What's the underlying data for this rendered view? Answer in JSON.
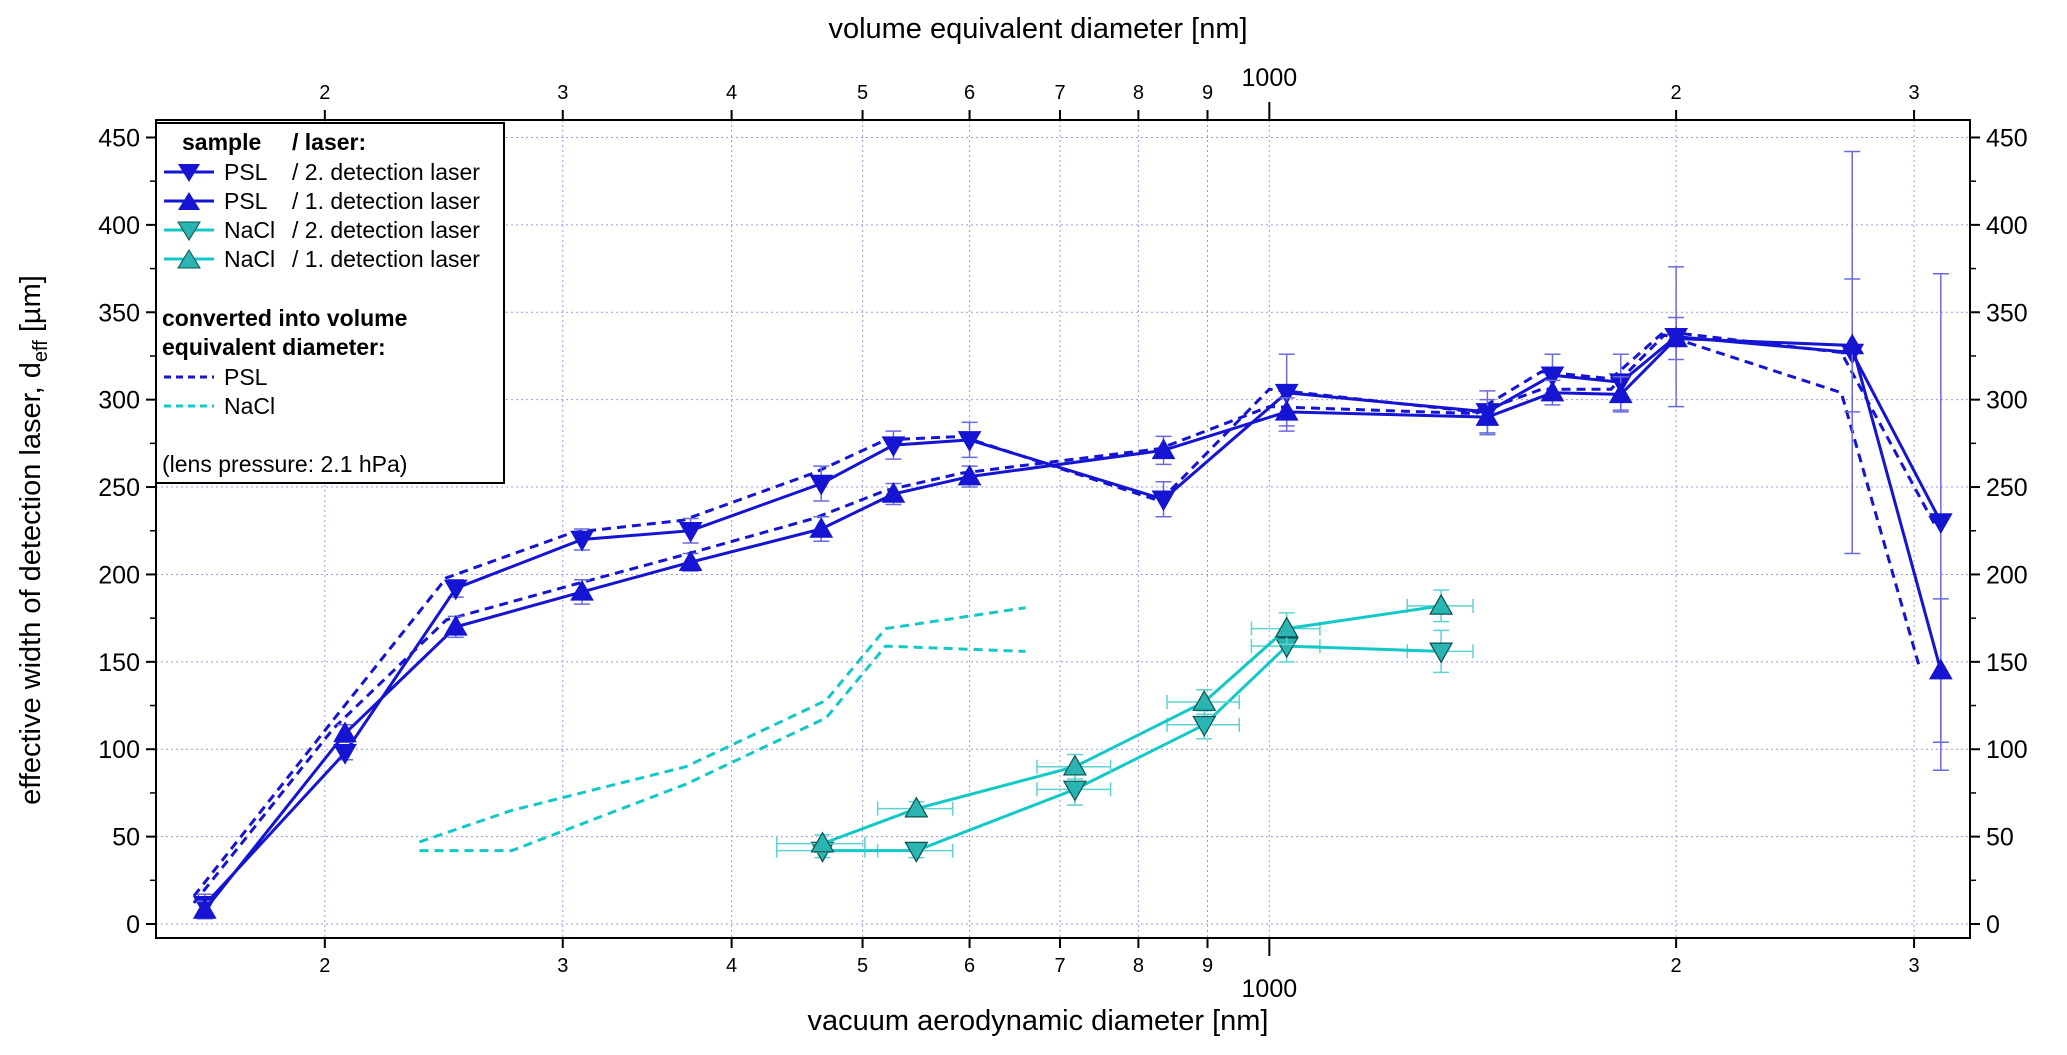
{
  "chart_data": {
    "type": "line",
    "title": "",
    "xlabel": "vacuum aerodynamic diameter [nm]",
    "x2label": "volume equivalent diameter [nm]",
    "ylabel_main": "effective width of detection laser, d",
    "ylabel_sub": "eff",
    "ylabel_unit": " [µm]",
    "xscale": "log",
    "xlim": [
      150,
      3300
    ],
    "ylim": [
      -8,
      460
    ],
    "x_major_tick_label": "1000",
    "x_minor_tick_labels": [
      {
        "value": 200,
        "label": "2"
      },
      {
        "value": 300,
        "label": "3"
      },
      {
        "value": 400,
        "label": "4"
      },
      {
        "value": 500,
        "label": "5"
      },
      {
        "value": 600,
        "label": "6"
      },
      {
        "value": 700,
        "label": "7"
      },
      {
        "value": 800,
        "label": "8"
      },
      {
        "value": 900,
        "label": "9"
      },
      {
        "value": 2000,
        "label": "2"
      },
      {
        "value": 3000,
        "label": "3"
      }
    ],
    "y_ticks": [
      0,
      50,
      100,
      150,
      200,
      250,
      300,
      350,
      400,
      450
    ],
    "grid": true,
    "legend": {
      "placement": "top-left",
      "header_sample": "sample",
      "header_laser": "/ laser:",
      "entries": [
        {
          "sample": "PSL",
          "laser": "/ 2. detection laser"
        },
        {
          "sample": "PSL",
          "laser": "/ 1. detection laser"
        },
        {
          "sample": "NaCl",
          "laser": "/ 2. detection laser"
        },
        {
          "sample": "NaCl",
          "laser": "/ 1. detection laser"
        }
      ],
      "converted_title_1": "converted into volume",
      "converted_title_2": "equivalent diameter:",
      "converted_entries": [
        "PSL",
        "NaCl"
      ],
      "note": "(lens pressure: 2.1 hPa)"
    },
    "colors": {
      "psl": "#1414d2",
      "nacl": "#14c8c8",
      "nacl_fill": "#2ab5b2",
      "errorbar_psl": "#6a6ae0",
      "errorbar_nacl": "#5fd2d2"
    },
    "series": [
      {
        "name": "PSL / 2. detection laser",
        "group": "psl",
        "marker": "down",
        "points": [
          {
            "x": 163,
            "y": 11,
            "err": 6
          },
          {
            "x": 207,
            "y": 98,
            "err": 4
          },
          {
            "x": 250,
            "y": 192,
            "err": 5
          },
          {
            "x": 310,
            "y": 220,
            "err": 6
          },
          {
            "x": 373,
            "y": 225,
            "err": 7
          },
          {
            "x": 466,
            "y": 252,
            "err": 10
          },
          {
            "x": 527,
            "y": 274,
            "err": 8
          },
          {
            "x": 600,
            "y": 277,
            "err": 10
          },
          {
            "x": 835,
            "y": 243,
            "err": 10
          },
          {
            "x": 1030,
            "y": 304,
            "err": 22
          },
          {
            "x": 1450,
            "y": 293,
            "err": 12
          },
          {
            "x": 1620,
            "y": 314,
            "err": 12
          },
          {
            "x": 1820,
            "y": 310,
            "err": 16
          },
          {
            "x": 2000,
            "y": 336,
            "err": 40
          },
          {
            "x": 2700,
            "y": 327,
            "err": 115
          },
          {
            "x": 3140,
            "y": 230,
            "err": 142
          }
        ]
      },
      {
        "name": "PSL / 1. detection laser",
        "group": "psl",
        "marker": "up",
        "points": [
          {
            "x": 163,
            "y": 8,
            "err": 5
          },
          {
            "x": 207,
            "y": 109,
            "err": 5
          },
          {
            "x": 250,
            "y": 170,
            "err": 6
          },
          {
            "x": 310,
            "y": 190,
            "err": 7
          },
          {
            "x": 373,
            "y": 207,
            "err": 5
          },
          {
            "x": 466,
            "y": 226,
            "err": 7
          },
          {
            "x": 527,
            "y": 246,
            "err": 6
          },
          {
            "x": 600,
            "y": 256,
            "err": 6
          },
          {
            "x": 835,
            "y": 271,
            "err": 8
          },
          {
            "x": 1030,
            "y": 293,
            "err": 8
          },
          {
            "x": 1450,
            "y": 290,
            "err": 10
          },
          {
            "x": 1620,
            "y": 304,
            "err": 7
          },
          {
            "x": 1820,
            "y": 303,
            "err": 10
          },
          {
            "x": 2000,
            "y": 335,
            "err": 12
          },
          {
            "x": 2700,
            "y": 331,
            "err": 38
          },
          {
            "x": 3140,
            "y": 145,
            "err": 41
          }
        ]
      },
      {
        "name": "NaCl / 2. detection laser",
        "group": "nacl",
        "marker": "down",
        "points": [
          {
            "x": 467,
            "y": 42,
            "err": 4,
            "xerr": 35
          },
          {
            "x": 548,
            "y": 42,
            "err": 4,
            "xerr": 35
          },
          {
            "x": 718,
            "y": 77,
            "err": 9,
            "xerr": 45
          },
          {
            "x": 895,
            "y": 114,
            "err": 8,
            "xerr": 55
          },
          {
            "x": 1030,
            "y": 159,
            "err": 9,
            "xerr": 60
          },
          {
            "x": 1340,
            "y": 156,
            "err": 12,
            "xerr": 75
          }
        ]
      },
      {
        "name": "NaCl / 1. detection laser",
        "group": "nacl",
        "marker": "up",
        "points": [
          {
            "x": 467,
            "y": 46,
            "err": 5,
            "xerr": 35
          },
          {
            "x": 548,
            "y": 66,
            "err": 4,
            "xerr": 35
          },
          {
            "x": 718,
            "y": 90,
            "err": 7,
            "xerr": 45
          },
          {
            "x": 895,
            "y": 127,
            "err": 7,
            "xerr": 55
          },
          {
            "x": 1030,
            "y": 169,
            "err": 9,
            "xerr": 60
          },
          {
            "x": 1340,
            "y": 182,
            "err": 9,
            "xerr": 75
          }
        ]
      },
      {
        "name": "PSL",
        "group": "psl",
        "marker": "none",
        "dashed": true,
        "points": [
          {
            "x": 160,
            "y": 16
          },
          {
            "x": 203,
            "y": 117
          },
          {
            "x": 246,
            "y": 198
          },
          {
            "x": 305,
            "y": 224
          },
          {
            "x": 368,
            "y": 231
          },
          {
            "x": 460,
            "y": 258
          },
          {
            "x": 520,
            "y": 277
          },
          {
            "x": 592,
            "y": 279
          },
          {
            "x": 830,
            "y": 242
          },
          {
            "x": 1000,
            "y": 306
          },
          {
            "x": 1420,
            "y": 293
          },
          {
            "x": 1590,
            "y": 316
          },
          {
            "x": 1790,
            "y": 312
          },
          {
            "x": 1960,
            "y": 339
          },
          {
            "x": 2650,
            "y": 327
          },
          {
            "x": 3110,
            "y": 228
          }
        ]
      },
      {
        "name": "PSL",
        "group": "psl",
        "marker": "none",
        "dashed": true,
        "points": [
          {
            "x": 160,
            "y": 12
          },
          {
            "x": 203,
            "y": 112
          },
          {
            "x": 246,
            "y": 174
          },
          {
            "x": 305,
            "y": 194
          },
          {
            "x": 368,
            "y": 211
          },
          {
            "x": 460,
            "y": 232
          },
          {
            "x": 520,
            "y": 248
          },
          {
            "x": 592,
            "y": 258
          },
          {
            "x": 830,
            "y": 272
          },
          {
            "x": 1000,
            "y": 296
          },
          {
            "x": 1420,
            "y": 292
          },
          {
            "x": 1590,
            "y": 306
          },
          {
            "x": 1790,
            "y": 306
          },
          {
            "x": 1960,
            "y": 337
          },
          {
            "x": 2650,
            "y": 304
          },
          {
            "x": 3030,
            "y": 146
          }
        ]
      },
      {
        "name": "NaCl",
        "group": "nacl",
        "marker": "none",
        "dashed": true,
        "points": [
          {
            "x": 235,
            "y": 42
          },
          {
            "x": 275,
            "y": 42
          },
          {
            "x": 370,
            "y": 80
          },
          {
            "x": 470,
            "y": 118
          },
          {
            "x": 520,
            "y": 159
          },
          {
            "x": 660,
            "y": 156
          }
        ]
      },
      {
        "name": "NaCl",
        "group": "nacl",
        "marker": "none",
        "dashed": true,
        "points": [
          {
            "x": 235,
            "y": 47
          },
          {
            "x": 275,
            "y": 65
          },
          {
            "x": 370,
            "y": 90
          },
          {
            "x": 470,
            "y": 128
          },
          {
            "x": 520,
            "y": 169
          },
          {
            "x": 660,
            "y": 181
          }
        ]
      }
    ]
  }
}
